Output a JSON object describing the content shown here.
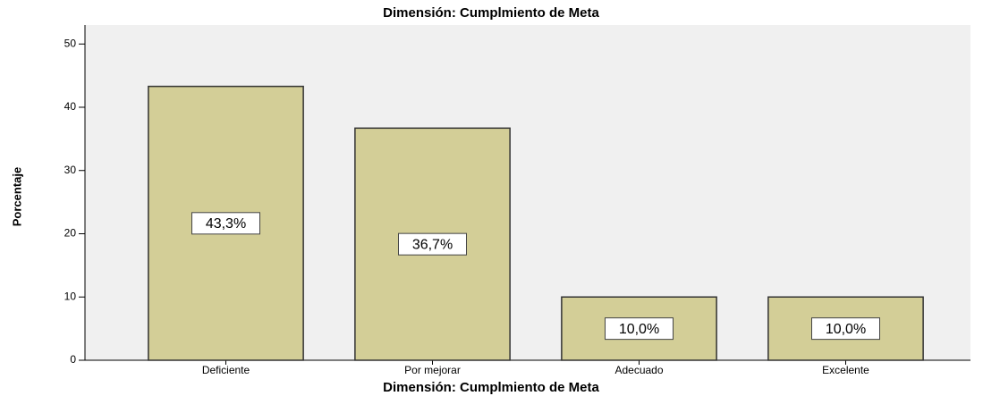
{
  "chart_data": {
    "type": "bar",
    "title": "Dimensión: Cumplmiento de Meta",
    "x_label": "Dimensión: Cumplmiento de Meta",
    "y_label": "Porcentaje",
    "categories": [
      "Deficiente",
      "Por mejorar",
      "Adecuado",
      "Excelente"
    ],
    "values": [
      43.3,
      36.7,
      10.0,
      10.0
    ],
    "value_labels": [
      "43,3%",
      "36,7%",
      "10,0%",
      "10,0%"
    ],
    "color": "#d3ce97",
    "ylim": [
      0,
      53
    ],
    "yticks": [
      0,
      10,
      20,
      30,
      40,
      50
    ]
  }
}
